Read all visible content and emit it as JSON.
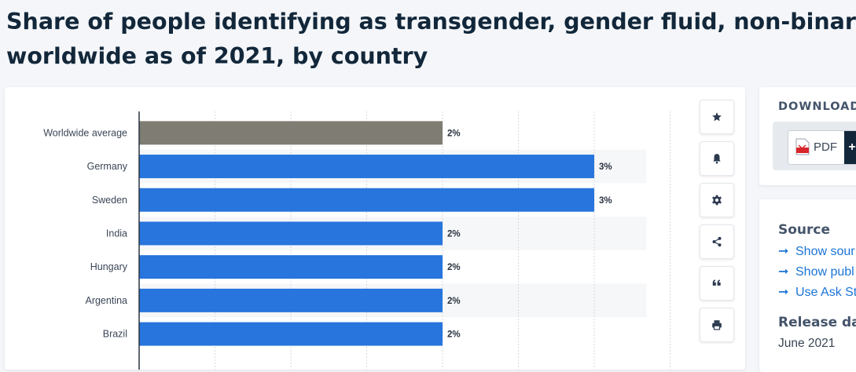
{
  "page": {
    "title_line1": "Share of people identifying as transgender, gender fluid, non-binary, o",
    "title_line2": "worldwide as of 2021, by country"
  },
  "toolbar": {
    "buttons": [
      {
        "name": "favorite",
        "icon": "star-icon"
      },
      {
        "name": "notification",
        "icon": "bell-icon"
      },
      {
        "name": "settings",
        "icon": "gear-icon"
      },
      {
        "name": "share",
        "icon": "share-icon"
      },
      {
        "name": "cite",
        "icon": "quote-icon"
      },
      {
        "name": "print",
        "icon": "printer-icon"
      }
    ]
  },
  "download": {
    "title": "DOWNLOAD",
    "pdf_label": "PDF",
    "plus_label": "+"
  },
  "source": {
    "heading": "Source",
    "links": [
      "Show sour",
      "Show publ",
      "Use Ask St"
    ],
    "arrow": "➞",
    "release_heading": "Release dat",
    "release_value": "June 2021"
  },
  "colors": {
    "average_bar": "#7f7d73",
    "country_bar": "#2775dd",
    "title_text": "#12273a",
    "link": "#1b74d6"
  },
  "chart_data": {
    "type": "bar",
    "orientation": "horizontal",
    "categories": [
      "Worldwide average",
      "Germany",
      "Sweden",
      "India",
      "Hungary",
      "Argentina",
      "Brazil"
    ],
    "values": [
      2,
      3,
      3,
      2,
      2,
      2,
      2
    ],
    "value_labels": [
      "2%",
      "3%",
      "3%",
      "2%",
      "2%",
      "2%",
      "2%"
    ],
    "highlight_index": 0,
    "xlim": [
      0,
      3.5
    ],
    "grid": true
  }
}
